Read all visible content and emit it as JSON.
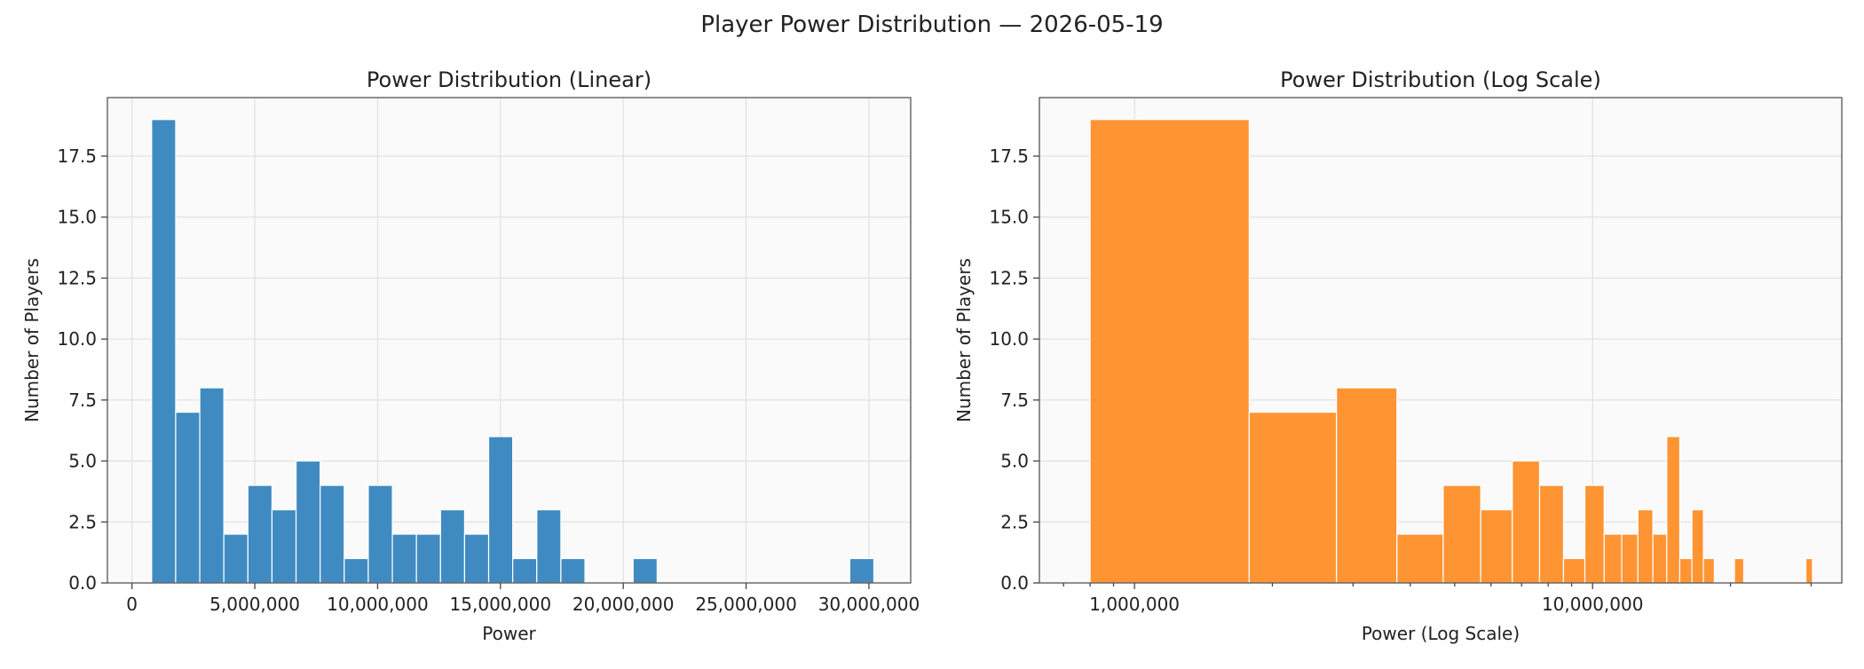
{
  "figure": {
    "suptitle": "Player Power Distribution — 2026-05-19",
    "plot_bg": "#fafafa"
  },
  "chart_data": [
    {
      "type": "bar",
      "title": "Power Distribution (Linear)",
      "xlabel": "Power",
      "ylabel": "Number of Players",
      "xscale": "linear",
      "xlim": [
        -1000000,
        31700000
      ],
      "ylim": [
        0,
        19.9
      ],
      "grid": true,
      "color": "#3f8bc1",
      "xticks": [
        0,
        5000000,
        10000000,
        15000000,
        20000000,
        25000000,
        30000000
      ],
      "xtick_labels": [
        "0",
        "5,000,000",
        "10,000,000",
        "15,000,000",
        "20,000,000",
        "25,000,000",
        "30,000,000"
      ],
      "yticks": [
        0,
        2.5,
        5,
        7.5,
        10,
        12.5,
        15,
        17.5
      ],
      "ytick_labels": [
        "0.0",
        "2.5",
        "5.0",
        "7.5",
        "10.0",
        "12.5",
        "15.0",
        "17.5"
      ],
      "bins": [
        {
          "x0": 800000,
          "x1": 1780000,
          "count": 19
        },
        {
          "x0": 1780000,
          "x1": 2760000,
          "count": 7
        },
        {
          "x0": 2760000,
          "x1": 3740000,
          "count": 8
        },
        {
          "x0": 3740000,
          "x1": 4720000,
          "count": 2
        },
        {
          "x0": 4720000,
          "x1": 5700000,
          "count": 4
        },
        {
          "x0": 5700000,
          "x1": 6680000,
          "count": 3
        },
        {
          "x0": 6680000,
          "x1": 7660000,
          "count": 5
        },
        {
          "x0": 7660000,
          "x1": 8640000,
          "count": 4
        },
        {
          "x0": 8640000,
          "x1": 9620000,
          "count": 1
        },
        {
          "x0": 9620000,
          "x1": 10600000,
          "count": 4
        },
        {
          "x0": 10600000,
          "x1": 11580000,
          "count": 2
        },
        {
          "x0": 11580000,
          "x1": 12560000,
          "count": 2
        },
        {
          "x0": 12560000,
          "x1": 13540000,
          "count": 3
        },
        {
          "x0": 13540000,
          "x1": 14520000,
          "count": 2
        },
        {
          "x0": 14520000,
          "x1": 15500000,
          "count": 6
        },
        {
          "x0": 15500000,
          "x1": 16480000,
          "count": 1
        },
        {
          "x0": 16480000,
          "x1": 17460000,
          "count": 3
        },
        {
          "x0": 17460000,
          "x1": 18440000,
          "count": 1
        },
        {
          "x0": 20400000,
          "x1": 21380000,
          "count": 1
        },
        {
          "x0": 29220000,
          "x1": 30200000,
          "count": 1
        }
      ]
    },
    {
      "type": "bar",
      "title": "Power Distribution (Log Scale)",
      "xlabel": "Power (Log Scale)",
      "ylabel": "Number of Players",
      "xscale": "log",
      "xlim": [
        620000,
        35000000
      ],
      "ylim": [
        0,
        19.9
      ],
      "grid": true,
      "color": "#ff9433",
      "xticks": [
        1000000,
        10000000
      ],
      "xtick_labels": [
        "1,000,000",
        "10,000,000"
      ],
      "yticks": [
        0,
        2.5,
        5,
        7.5,
        10,
        12.5,
        15,
        17.5
      ],
      "ytick_labels": [
        "0.0",
        "2.5",
        "5.0",
        "7.5",
        "10.0",
        "12.5",
        "15.0",
        "17.5"
      ],
      "bins": [
        {
          "x0": 800000,
          "x1": 1780000,
          "count": 19
        },
        {
          "x0": 1780000,
          "x1": 2760000,
          "count": 7
        },
        {
          "x0": 2760000,
          "x1": 3740000,
          "count": 8
        },
        {
          "x0": 3740000,
          "x1": 4720000,
          "count": 2
        },
        {
          "x0": 4720000,
          "x1": 5700000,
          "count": 4
        },
        {
          "x0": 5700000,
          "x1": 6680000,
          "count": 3
        },
        {
          "x0": 6680000,
          "x1": 7660000,
          "count": 5
        },
        {
          "x0": 7660000,
          "x1": 8640000,
          "count": 4
        },
        {
          "x0": 8640000,
          "x1": 9620000,
          "count": 1
        },
        {
          "x0": 9620000,
          "x1": 10600000,
          "count": 4
        },
        {
          "x0": 10600000,
          "x1": 11580000,
          "count": 2
        },
        {
          "x0": 11580000,
          "x1": 12560000,
          "count": 2
        },
        {
          "x0": 12560000,
          "x1": 13540000,
          "count": 3
        },
        {
          "x0": 13540000,
          "x1": 14520000,
          "count": 2
        },
        {
          "x0": 14520000,
          "x1": 15500000,
          "count": 6
        },
        {
          "x0": 15500000,
          "x1": 16480000,
          "count": 1
        },
        {
          "x0": 16480000,
          "x1": 17460000,
          "count": 3
        },
        {
          "x0": 17460000,
          "x1": 18440000,
          "count": 1
        },
        {
          "x0": 20400000,
          "x1": 21380000,
          "count": 1
        },
        {
          "x0": 29220000,
          "x1": 30200000,
          "count": 1
        }
      ]
    }
  ]
}
